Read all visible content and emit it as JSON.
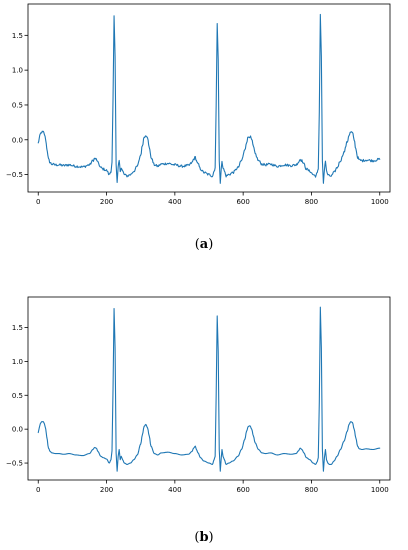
{
  "chart_data": [
    {
      "type": "line",
      "panel": "a",
      "caption_letter": "a",
      "caption_open": "(",
      "caption_close": ")",
      "title": "",
      "xlabel": "",
      "ylabel": "",
      "grid": false,
      "legend": "none",
      "color": "#1f77b4",
      "xlim": [
        -30,
        1030
      ],
      "ylim": [
        -0.75,
        1.95
      ],
      "xticks": [
        0,
        200,
        400,
        600,
        800,
        1000
      ],
      "yticks": [
        -0.5,
        0.0,
        0.5,
        1.0,
        1.5
      ],
      "ytick_labels": [
        "−0.5",
        "0.0",
        "0.5",
        "1.0",
        "1.5"
      ],
      "noise": true,
      "series": [
        {
          "x": [
            0,
            3,
            6,
            10,
            15,
            18,
            22,
            25,
            30,
            35,
            40,
            50,
            60,
            75,
            90,
            110,
            130,
            150,
            160,
            165,
            170,
            175,
            183,
            190,
            200,
            208,
            213,
            216,
            219,
            222,
            225,
            228,
            231,
            234,
            237,
            240,
            243,
            247,
            252,
            260,
            270,
            280,
            290,
            300,
            305,
            310,
            315,
            320,
            325,
            330,
            340,
            350,
            360,
            380,
            400,
            420,
            440,
            450,
            455,
            460,
            463,
            468,
            475,
            485,
            500,
            510,
            515,
            518,
            521,
            524,
            527,
            530,
            533,
            536,
            538,
            541,
            545,
            550,
            558,
            570,
            585,
            595,
            605,
            610,
            615,
            620,
            625,
            630,
            635,
            645,
            655,
            665,
            680,
            700,
            720,
            740,
            755,
            762,
            767,
            772,
            778,
            785,
            795,
            805,
            812,
            817,
            820,
            823,
            826,
            829,
            832,
            835,
            838,
            841,
            844,
            848,
            852,
            858,
            866,
            875,
            885,
            895,
            905,
            910,
            915,
            920,
            925,
            930,
            935,
            940,
            948,
            960,
            980,
            1000
          ],
          "values": [
            -0.05,
            0.02,
            0.08,
            0.11,
            0.11,
            0.08,
            0.0,
            -0.12,
            -0.28,
            -0.33,
            -0.35,
            -0.36,
            -0.36,
            -0.37,
            -0.36,
            -0.38,
            -0.39,
            -0.36,
            -0.3,
            -0.27,
            -0.28,
            -0.33,
            -0.4,
            -0.42,
            -0.44,
            -0.5,
            -0.45,
            -0.32,
            0.6,
            1.78,
            1.2,
            -0.35,
            -0.62,
            -0.4,
            -0.3,
            -0.45,
            -0.4,
            -0.45,
            -0.5,
            -0.52,
            -0.5,
            -0.45,
            -0.38,
            -0.22,
            -0.08,
            0.04,
            0.07,
            0.02,
            -0.1,
            -0.25,
            -0.36,
            -0.38,
            -0.35,
            -0.34,
            -0.36,
            -0.38,
            -0.37,
            -0.33,
            -0.28,
            -0.25,
            -0.3,
            -0.35,
            -0.42,
            -0.47,
            -0.5,
            -0.52,
            -0.45,
            -0.4,
            0.5,
            1.67,
            1.15,
            -0.3,
            -0.62,
            -0.42,
            -0.3,
            -0.4,
            -0.45,
            -0.52,
            -0.5,
            -0.47,
            -0.4,
            -0.3,
            -0.15,
            -0.03,
            0.04,
            0.05,
            0.0,
            -0.1,
            -0.2,
            -0.3,
            -0.35,
            -0.36,
            -0.35,
            -0.38,
            -0.36,
            -0.37,
            -0.36,
            -0.32,
            -0.28,
            -0.3,
            -0.35,
            -0.42,
            -0.45,
            -0.5,
            -0.52,
            -0.48,
            -0.42,
            0.4,
            1.8,
            1.2,
            -0.3,
            -0.62,
            -0.42,
            -0.3,
            -0.45,
            -0.5,
            -0.52,
            -0.52,
            -0.47,
            -0.4,
            -0.3,
            -0.18,
            -0.03,
            0.07,
            0.11,
            0.1,
            0.0,
            -0.13,
            -0.25,
            -0.29,
            -0.3,
            -0.29,
            -0.3,
            -0.28
          ]
        }
      ]
    },
    {
      "type": "line",
      "panel": "b",
      "caption_letter": "b",
      "caption_open": "(",
      "caption_close": ")",
      "title": "",
      "xlabel": "",
      "ylabel": "",
      "grid": false,
      "legend": "none",
      "color": "#1f77b4",
      "xlim": [
        -30,
        1030
      ],
      "ylim": [
        -0.75,
        1.95
      ],
      "xticks": [
        0,
        200,
        400,
        600,
        800,
        1000
      ],
      "yticks": [
        -0.5,
        0.0,
        0.5,
        1.0,
        1.5
      ],
      "ytick_labels": [
        "−0.5",
        "0.0",
        "0.5",
        "1.0",
        "1.5"
      ],
      "noise": false,
      "series": [
        {
          "x": [
            0,
            3,
            6,
            10,
            15,
            18,
            22,
            25,
            30,
            35,
            40,
            50,
            60,
            75,
            90,
            110,
            130,
            150,
            160,
            165,
            170,
            175,
            183,
            190,
            200,
            208,
            213,
            216,
            219,
            222,
            225,
            228,
            231,
            234,
            237,
            240,
            243,
            247,
            252,
            260,
            270,
            280,
            290,
            300,
            305,
            310,
            315,
            320,
            325,
            330,
            340,
            350,
            360,
            380,
            400,
            420,
            440,
            450,
            455,
            460,
            463,
            468,
            475,
            485,
            500,
            510,
            515,
            518,
            521,
            524,
            527,
            530,
            533,
            536,
            538,
            541,
            545,
            550,
            558,
            570,
            585,
            595,
            605,
            610,
            615,
            620,
            625,
            630,
            635,
            645,
            655,
            665,
            680,
            700,
            720,
            740,
            755,
            762,
            767,
            772,
            778,
            785,
            795,
            805,
            812,
            817,
            820,
            823,
            826,
            829,
            832,
            835,
            838,
            841,
            844,
            848,
            852,
            858,
            866,
            875,
            885,
            895,
            905,
            910,
            915,
            920,
            925,
            930,
            935,
            940,
            948,
            960,
            980,
            1000
          ],
          "values": [
            -0.05,
            0.02,
            0.08,
            0.11,
            0.11,
            0.08,
            0.0,
            -0.12,
            -0.28,
            -0.33,
            -0.35,
            -0.36,
            -0.36,
            -0.37,
            -0.36,
            -0.38,
            -0.39,
            -0.36,
            -0.3,
            -0.27,
            -0.28,
            -0.33,
            -0.4,
            -0.42,
            -0.44,
            -0.5,
            -0.45,
            -0.32,
            0.6,
            1.78,
            1.2,
            -0.35,
            -0.62,
            -0.4,
            -0.3,
            -0.45,
            -0.4,
            -0.45,
            -0.5,
            -0.52,
            -0.5,
            -0.45,
            -0.38,
            -0.22,
            -0.08,
            0.04,
            0.07,
            0.02,
            -0.1,
            -0.25,
            -0.36,
            -0.38,
            -0.35,
            -0.34,
            -0.36,
            -0.38,
            -0.37,
            -0.33,
            -0.28,
            -0.25,
            -0.3,
            -0.35,
            -0.42,
            -0.47,
            -0.5,
            -0.52,
            -0.45,
            -0.4,
            0.5,
            1.67,
            1.15,
            -0.3,
            -0.62,
            -0.42,
            -0.3,
            -0.4,
            -0.45,
            -0.52,
            -0.5,
            -0.47,
            -0.4,
            -0.3,
            -0.15,
            -0.03,
            0.04,
            0.05,
            0.0,
            -0.1,
            -0.2,
            -0.3,
            -0.35,
            -0.36,
            -0.35,
            -0.38,
            -0.36,
            -0.37,
            -0.36,
            -0.32,
            -0.28,
            -0.3,
            -0.35,
            -0.42,
            -0.45,
            -0.5,
            -0.52,
            -0.48,
            -0.42,
            0.4,
            1.8,
            1.2,
            -0.3,
            -0.62,
            -0.42,
            -0.3,
            -0.45,
            -0.5,
            -0.52,
            -0.52,
            -0.47,
            -0.4,
            -0.3,
            -0.18,
            -0.03,
            0.07,
            0.11,
            0.1,
            0.0,
            -0.13,
            -0.25,
            -0.29,
            -0.3,
            -0.29,
            -0.3,
            -0.28
          ]
        }
      ]
    }
  ]
}
